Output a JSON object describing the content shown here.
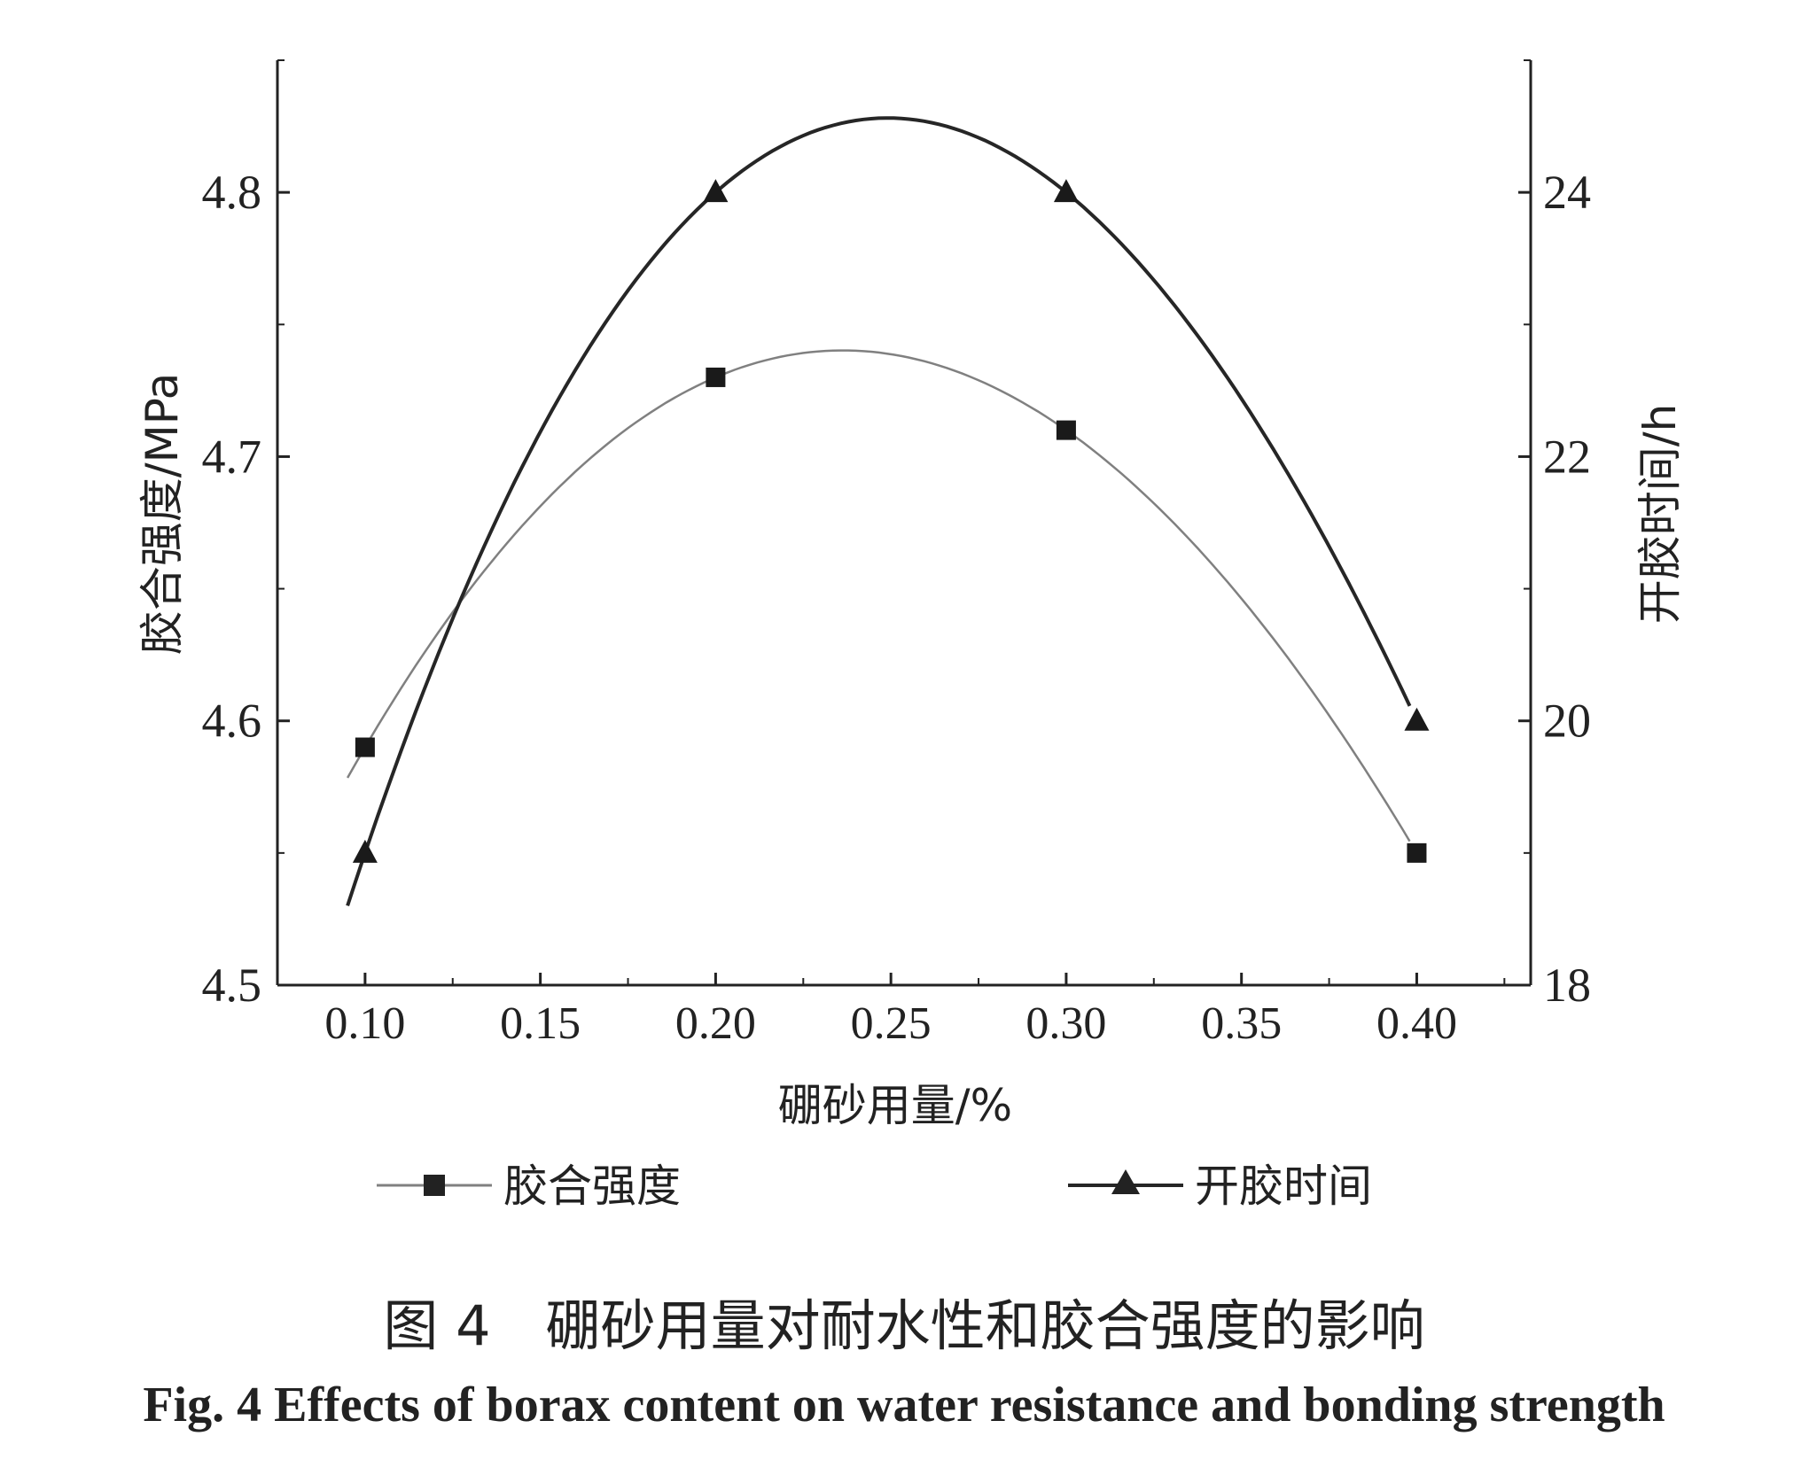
{
  "chart_data": {
    "type": "line",
    "x_values": [
      0.1,
      0.2,
      0.3,
      0.4
    ],
    "x_ticks": [
      "0.10",
      "0.15",
      "0.20",
      "0.25",
      "0.30",
      "0.35",
      "0.40"
    ],
    "xlabel": "硼砂用量/%",
    "xlim": [
      0.075,
      0.4325
    ],
    "y_left": {
      "label": "胶合强度/MPa",
      "lim": [
        4.5,
        4.85
      ],
      "ticks": [
        "4.5",
        "4.6",
        "4.7",
        "4.8"
      ]
    },
    "y_right": {
      "label": "开胶时间/h",
      "lim": [
        18,
        25
      ],
      "ticks": [
        "18",
        "20",
        "22",
        "24"
      ]
    },
    "series": [
      {
        "name": "胶合强度",
        "axis": "left",
        "marker": "square",
        "values": [
          4.59,
          4.73,
          4.71,
          4.55
        ],
        "color": "#808080"
      },
      {
        "name": "开胶时间",
        "axis": "right",
        "marker": "triangle",
        "values": [
          19,
          24,
          24,
          20
        ],
        "color": "#262626"
      }
    ],
    "legend_position": "bottom"
  },
  "caption": {
    "cn": "图 4　硼砂用量对耐水性和胶合强度的影响",
    "en": "Fig. 4   Effects of borax content on water resistance and bonding strength"
  }
}
